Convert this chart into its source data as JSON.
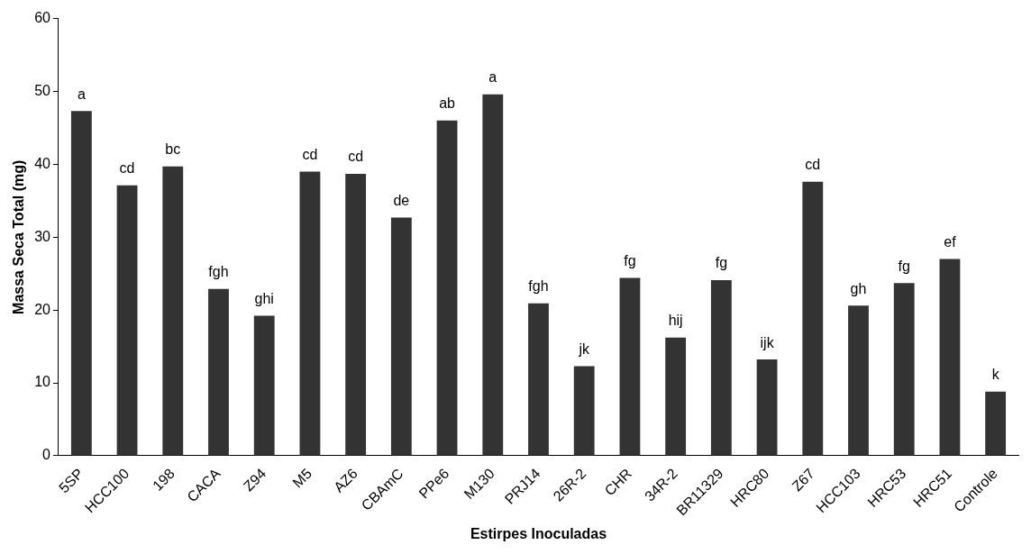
{
  "chart_data": {
    "type": "bar",
    "xlabel": "Estirpes Inoculadas",
    "ylabel": "Massa Seca Total (mg)",
    "categories": [
      "5SP",
      "HCC100",
      "198",
      "CACA",
      "Z94",
      "M5",
      "AZ6",
      "CBAmC",
      "PPe6",
      "M130",
      "PRJ14",
      "26R-2",
      "CHR",
      "34R-2",
      "BR11329",
      "HRC80",
      "Z67",
      "HCC103",
      "HRC53",
      "HRC51",
      "Controle"
    ],
    "values": [
      47.3,
      37.1,
      39.7,
      22.9,
      19.2,
      39.0,
      38.7,
      32.7,
      46.0,
      49.6,
      20.9,
      12.3,
      24.4,
      16.2,
      24.1,
      13.2,
      37.6,
      20.6,
      23.7,
      27.0,
      8.8
    ],
    "color": "#333333",
    "ylim": [
      0,
      60
    ],
    "yticks": [
      0,
      10,
      20,
      30,
      40,
      50,
      60
    ],
    "grid": false,
    "legend": false,
    "annotations": [
      {
        "text": "a",
        "x": "5SP",
        "y": 47.3
      },
      {
        "text": "cd",
        "x": "HCC100",
        "y": 37.1
      },
      {
        "text": "bc",
        "x": "198",
        "y": 39.7
      },
      {
        "text": "fgh",
        "x": "CACA",
        "y": 22.9
      },
      {
        "text": "ghi",
        "x": "Z94",
        "y": 19.2
      },
      {
        "text": "cd",
        "x": "M5",
        "y": 39.0
      },
      {
        "text": "cd",
        "x": "AZ6",
        "y": 38.7
      },
      {
        "text": "de",
        "x": "CBAmC",
        "y": 32.7
      },
      {
        "text": "ab",
        "x": "PPe6",
        "y": 46.0
      },
      {
        "text": "a",
        "x": "M130",
        "y": 49.6
      },
      {
        "text": "fgh",
        "x": "PRJ14",
        "y": 20.9
      },
      {
        "text": "jk",
        "x": "26R-2",
        "y": 12.3
      },
      {
        "text": "fg",
        "x": "CHR",
        "y": 24.4
      },
      {
        "text": "hij",
        "x": "34R-2",
        "y": 16.2
      },
      {
        "text": "fg",
        "x": "BR11329",
        "y": 24.1
      },
      {
        "text": "ijk",
        "x": "HRC80",
        "y": 13.2
      },
      {
        "text": "cd",
        "x": "Z67",
        "y": 37.6
      },
      {
        "text": "gh",
        "x": "HCC103",
        "y": 20.6
      },
      {
        "text": "fg",
        "x": "HRC53",
        "y": 23.7
      },
      {
        "text": "ef",
        "x": "HRC51",
        "y": 27.0
      },
      {
        "text": "k",
        "x": "Controle",
        "y": 8.8
      }
    ]
  }
}
